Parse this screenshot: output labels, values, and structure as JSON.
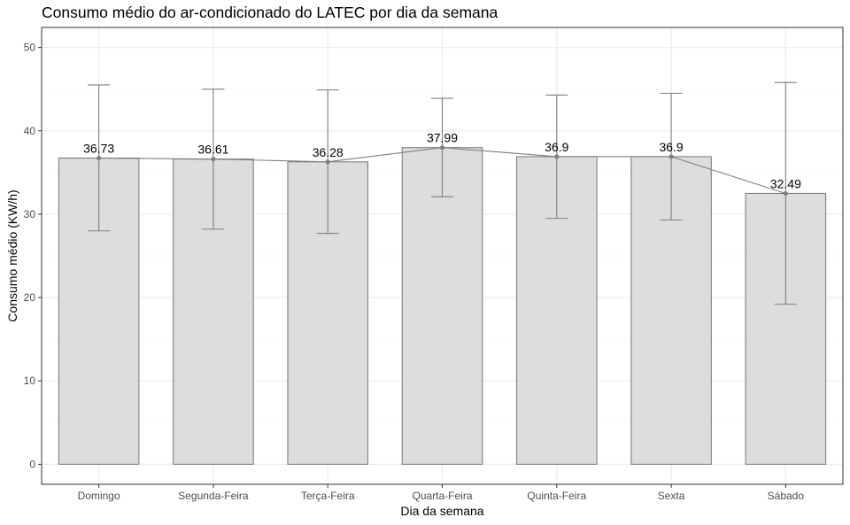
{
  "chart_data": {
    "type": "bar",
    "title": "Consumo médio do ar-condicionado do LATEC por dia da semana",
    "xlabel": "Dia da semana",
    "ylabel": "Consumo médio (KW/h)",
    "categories": [
      "Domingo",
      "Segunda-Feira",
      "Terça-Feira",
      "Quarta-Feira",
      "Quinta-Feira",
      "Sexta",
      "Sábado"
    ],
    "values": [
      36.73,
      36.61,
      36.28,
      37.99,
      36.9,
      36.9,
      32.49
    ],
    "value_labels": [
      "36.73",
      "36.61",
      "36.28",
      "37.99",
      "36.9",
      "36.9",
      "32.49"
    ],
    "error_upper": [
      45.5,
      45.0,
      44.9,
      43.9,
      44.3,
      44.5,
      45.8
    ],
    "error_lower": [
      28.0,
      28.2,
      27.7,
      32.1,
      29.5,
      29.3,
      19.2
    ],
    "ylim": [
      -2.4,
      52.4
    ],
    "yticks": [
      0,
      10,
      20,
      30,
      40,
      50
    ],
    "overlay": "line connecting bar means",
    "grid": true,
    "colors": {
      "bar_fill": "#dddddd",
      "bar_stroke": "#7f7f7f",
      "line": "#7f7f7f",
      "grid_major": "#ebebeb",
      "grid_minor": "#f5f5f5",
      "panel_border": "#333333"
    }
  }
}
